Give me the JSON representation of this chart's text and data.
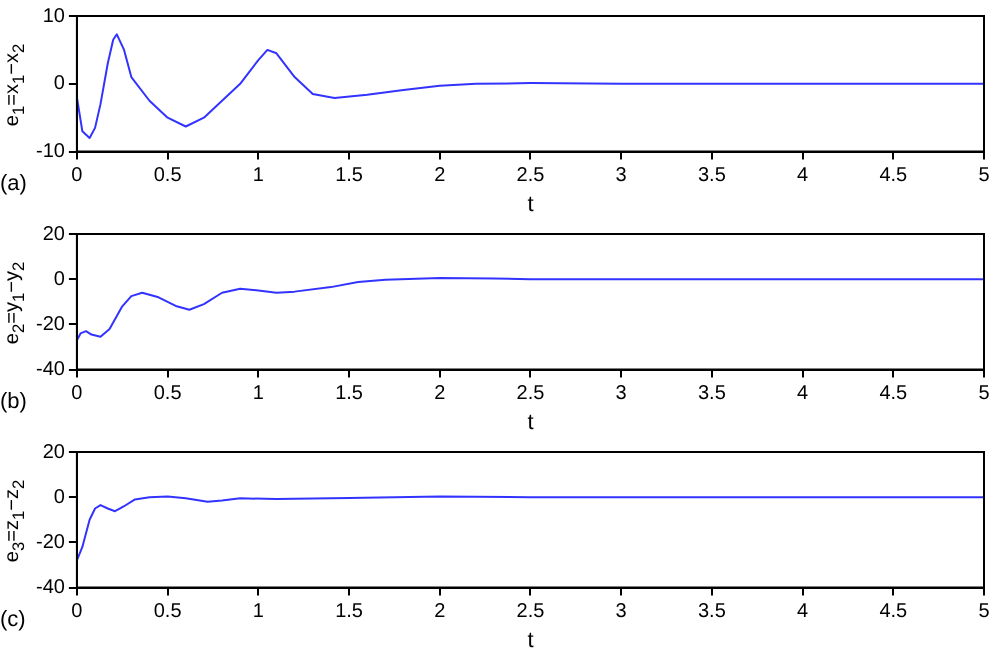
{
  "chart_data": [
    {
      "type": "line",
      "xlabel": "t",
      "ylabel": "e$_{1}$=x$_{1}$−x$_{2}$",
      "annotations": [
        "(a)"
      ],
      "x": [
        0,
        0.03,
        0.07,
        0.1,
        0.13,
        0.17,
        0.2,
        0.22,
        0.26,
        0.3,
        0.4,
        0.5,
        0.6,
        0.7,
        0.8,
        0.9,
        1.0,
        1.05,
        1.1,
        1.2,
        1.3,
        1.42,
        1.6,
        1.8,
        2.0,
        2.2,
        2.5,
        3,
        4,
        5
      ],
      "series": [
        {
          "color": "#3333ff",
          "values": [
            -2,
            -7,
            -8,
            -6.5,
            -3,
            3,
            6.5,
            7.3,
            5,
            1,
            -2.5,
            -5,
            -6.3,
            -5,
            -2.5,
            0,
            3.5,
            5,
            4.5,
            1,
            -1.5,
            -2.1,
            -1.6,
            -0.9,
            -0.3,
            0,
            0.1,
            0,
            0,
            0
          ]
        }
      ],
      "xlim": [
        0,
        5
      ],
      "xticks": [
        0,
        0.5,
        1,
        1.5,
        2,
        2.5,
        3,
        3.5,
        4,
        4.5,
        5
      ],
      "ylim": [
        -10,
        10
      ],
      "yticks": [
        -10,
        0,
        10
      ],
      "grid": false,
      "legend": false,
      "marker": "none",
      "line_style": "solid"
    },
    {
      "type": "line",
      "xlabel": "t",
      "ylabel": "e$_{2}$=y$_{1}$−y$_{2}$",
      "annotations": [
        "(b)"
      ],
      "x": [
        0,
        0.02,
        0.05,
        0.08,
        0.13,
        0.18,
        0.25,
        0.3,
        0.36,
        0.45,
        0.55,
        0.62,
        0.7,
        0.8,
        0.9,
        1.0,
        1.1,
        1.2,
        1.4,
        1.55,
        1.7,
        2.0,
        2.3,
        2.5,
        3,
        4,
        5
      ],
      "series": [
        {
          "color": "#3333ff",
          "values": [
            -27,
            -24,
            -23,
            -24.5,
            -25.5,
            -22,
            -12,
            -7.5,
            -6,
            -8,
            -12,
            -13.5,
            -11,
            -6,
            -4.2,
            -5,
            -6,
            -5.5,
            -3.5,
            -1.2,
            -0.2,
            0.5,
            0.3,
            0,
            0,
            0,
            0
          ]
        }
      ],
      "xlim": [
        0,
        5
      ],
      "xticks": [
        0,
        0.5,
        1,
        1.5,
        2,
        2.5,
        3,
        3.5,
        4,
        4.5,
        5
      ],
      "ylim": [
        -40,
        20
      ],
      "yticks": [
        -40,
        -20,
        0,
        20
      ],
      "grid": false,
      "legend": false,
      "marker": "none",
      "line_style": "solid"
    },
    {
      "type": "line",
      "xlabel": "t",
      "ylabel": "e$_{3}$=z$_{1}$−z$_{2}$",
      "annotations": [
        "(c)"
      ],
      "x": [
        0,
        0.03,
        0.07,
        0.1,
        0.13,
        0.17,
        0.21,
        0.26,
        0.32,
        0.4,
        0.5,
        0.6,
        0.72,
        0.8,
        0.9,
        1.1,
        1.5,
        2,
        2.5,
        3,
        4,
        5
      ],
      "series": [
        {
          "color": "#3333ff",
          "values": [
            -28,
            -22,
            -10,
            -5,
            -3.5,
            -5,
            -6.2,
            -4,
            -1,
            0,
            0.3,
            -0.5,
            -2,
            -1.5,
            -0.5,
            -0.8,
            -0.3,
            0.3,
            0,
            0,
            0,
            0
          ]
        }
      ],
      "xlim": [
        0,
        5
      ],
      "xticks": [
        0,
        0.5,
        1,
        1.5,
        2,
        2.5,
        3,
        3.5,
        4,
        4.5,
        5
      ],
      "ylim": [
        -40,
        20
      ],
      "yticks": [
        -40,
        -20,
        0,
        20
      ],
      "grid": false,
      "legend": false,
      "marker": "none",
      "line_style": "solid"
    }
  ]
}
